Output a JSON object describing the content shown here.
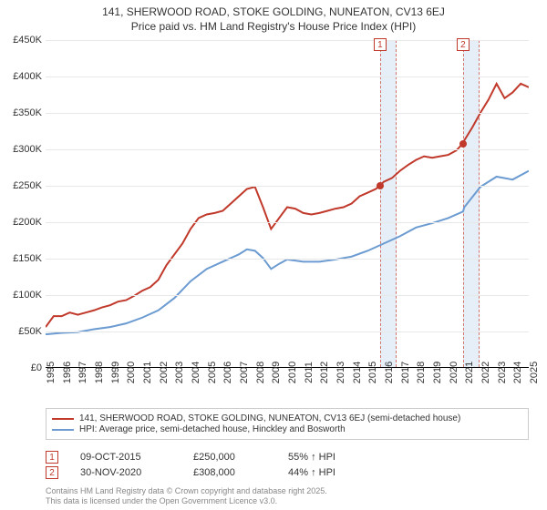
{
  "title_line1": "141, SHERWOOD ROAD, STOKE GOLDING, NUNEATON, CV13 6EJ",
  "title_line2": "Price paid vs. HM Land Registry's House Price Index (HPI)",
  "chart": {
    "type": "line",
    "background_color": "#ffffff",
    "grid_color": "#e8e8e8",
    "axis_color": "#000000",
    "ylim": [
      0,
      450000
    ],
    "ytick_step": 50000,
    "ytick_labels": [
      "£0",
      "£50K",
      "£100K",
      "£150K",
      "£200K",
      "£250K",
      "£300K",
      "£350K",
      "£400K",
      "£450K"
    ],
    "xlim": [
      1995,
      2025
    ],
    "xtick_step": 1,
    "xtick_labels": [
      "1995",
      "1996",
      "1997",
      "1998",
      "1999",
      "2000",
      "2001",
      "2002",
      "2003",
      "2004",
      "2005",
      "2006",
      "2007",
      "2008",
      "2009",
      "2010",
      "2011",
      "2012",
      "2013",
      "2014",
      "2015",
      "2016",
      "2017",
      "2018",
      "2019",
      "2020",
      "2021",
      "2022",
      "2023",
      "2024",
      "2025"
    ],
    "label_fontsize": 11,
    "shaded_regions": [
      {
        "x_start": 2015.77,
        "x_end": 2016.77
      },
      {
        "x_start": 2020.92,
        "x_end": 2021.92
      }
    ],
    "series": [
      {
        "name": "red",
        "color": "#c0392b",
        "line_width": 2,
        "points": [
          [
            1995,
            55000
          ],
          [
            1995.5,
            70000
          ],
          [
            1996,
            70000
          ],
          [
            1996.5,
            75000
          ],
          [
            1997,
            72000
          ],
          [
            1997.5,
            75000
          ],
          [
            1998,
            78000
          ],
          [
            1998.5,
            82000
          ],
          [
            1999,
            85000
          ],
          [
            1999.5,
            90000
          ],
          [
            2000,
            92000
          ],
          [
            2000.5,
            98000
          ],
          [
            2001,
            105000
          ],
          [
            2001.5,
            110000
          ],
          [
            2002,
            120000
          ],
          [
            2002.5,
            140000
          ],
          [
            2003,
            155000
          ],
          [
            2003.5,
            170000
          ],
          [
            2004,
            190000
          ],
          [
            2004.5,
            205000
          ],
          [
            2005,
            210000
          ],
          [
            2005.5,
            212000
          ],
          [
            2006,
            215000
          ],
          [
            2006.5,
            225000
          ],
          [
            2007,
            235000
          ],
          [
            2007.5,
            245000
          ],
          [
            2008,
            248000
          ],
          [
            2008.5,
            220000
          ],
          [
            2009,
            190000
          ],
          [
            2009.5,
            205000
          ],
          [
            2010,
            220000
          ],
          [
            2010.5,
            218000
          ],
          [
            2011,
            212000
          ],
          [
            2011.5,
            210000
          ],
          [
            2012,
            212000
          ],
          [
            2012.5,
            215000
          ],
          [
            2013,
            218000
          ],
          [
            2013.5,
            220000
          ],
          [
            2014,
            225000
          ],
          [
            2014.5,
            235000
          ],
          [
            2015,
            240000
          ],
          [
            2015.5,
            245000
          ],
          [
            2015.77,
            250000
          ],
          [
            2016,
            255000
          ],
          [
            2016.5,
            260000
          ],
          [
            2017,
            270000
          ],
          [
            2017.5,
            278000
          ],
          [
            2018,
            285000
          ],
          [
            2018.5,
            290000
          ],
          [
            2019,
            288000
          ],
          [
            2019.5,
            290000
          ],
          [
            2020,
            292000
          ],
          [
            2020.5,
            298000
          ],
          [
            2020.92,
            308000
          ],
          [
            2021,
            312000
          ],
          [
            2021.5,
            330000
          ],
          [
            2022,
            350000
          ],
          [
            2022.5,
            368000
          ],
          [
            2023,
            390000
          ],
          [
            2023.5,
            370000
          ],
          [
            2024,
            378000
          ],
          [
            2024.5,
            390000
          ],
          [
            2025,
            385000
          ]
        ]
      },
      {
        "name": "blue",
        "color": "#6b9bd1",
        "line_width": 2,
        "points": [
          [
            1995,
            45000
          ],
          [
            1996,
            47000
          ],
          [
            1997,
            48000
          ],
          [
            1998,
            52000
          ],
          [
            1999,
            55000
          ],
          [
            2000,
            60000
          ],
          [
            2001,
            68000
          ],
          [
            2002,
            78000
          ],
          [
            2003,
            95000
          ],
          [
            2004,
            118000
          ],
          [
            2005,
            135000
          ],
          [
            2006,
            145000
          ],
          [
            2007,
            155000
          ],
          [
            2007.5,
            162000
          ],
          [
            2008,
            160000
          ],
          [
            2008.5,
            150000
          ],
          [
            2009,
            135000
          ],
          [
            2009.5,
            142000
          ],
          [
            2010,
            148000
          ],
          [
            2011,
            145000
          ],
          [
            2012,
            145000
          ],
          [
            2013,
            148000
          ],
          [
            2014,
            152000
          ],
          [
            2015,
            160000
          ],
          [
            2016,
            170000
          ],
          [
            2017,
            180000
          ],
          [
            2018,
            192000
          ],
          [
            2019,
            198000
          ],
          [
            2020,
            205000
          ],
          [
            2020.92,
            214000
          ],
          [
            2021,
            220000
          ],
          [
            2022,
            248000
          ],
          [
            2023,
            262000
          ],
          [
            2024,
            258000
          ],
          [
            2025,
            270000
          ]
        ]
      }
    ],
    "markers": [
      {
        "index": "1",
        "x": 2015.77,
        "y": 250000
      },
      {
        "index": "2",
        "x": 2020.92,
        "y": 308000
      }
    ]
  },
  "legend": {
    "items": [
      {
        "color": "#c0392b",
        "label": "141, SHERWOOD ROAD, STOKE GOLDING, NUNEATON, CV13 6EJ (semi-detached house)"
      },
      {
        "color": "#6b9bd1",
        "label": "HPI: Average price, semi-detached house, Hinckley and Bosworth"
      }
    ]
  },
  "info": {
    "rows": [
      {
        "index": "1",
        "date": "09-OCT-2015",
        "price": "£250,000",
        "hpi": "55% ↑ HPI"
      },
      {
        "index": "2",
        "date": "30-NOV-2020",
        "price": "£308,000",
        "hpi": "44% ↑ HPI"
      }
    ]
  },
  "footer": {
    "line1": "Contains HM Land Registry data © Crown copyright and database right 2025.",
    "line2": "This data is licensed under the Open Government Licence v3.0."
  }
}
